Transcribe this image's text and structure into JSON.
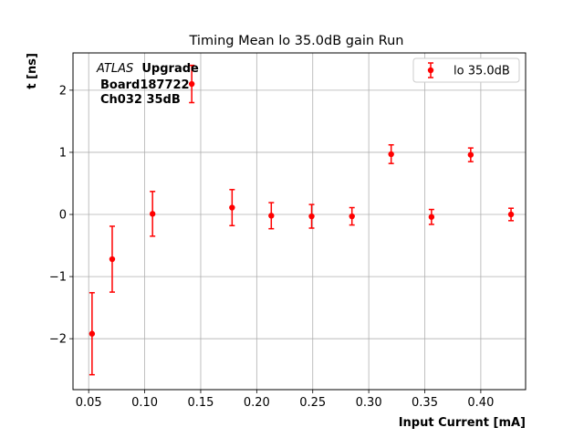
{
  "chart_data": {
    "type": "scatter",
    "title": "Timing Mean lo 35.0dB gain Run",
    "xlabel": "Input Current [mA]",
    "ylabel": "t [ns]",
    "xlim": [
      0.036,
      0.44
    ],
    "ylim": [
      -2.82,
      2.6
    ],
    "xticks": [
      0.05,
      0.1,
      0.15,
      0.2,
      0.25,
      0.3,
      0.35,
      0.4
    ],
    "xtick_labels": [
      "0.05",
      "0.10",
      "0.15",
      "0.20",
      "0.25",
      "0.30",
      "0.35",
      "0.40"
    ],
    "yticks": [
      -2,
      -1,
      0,
      1,
      2
    ],
    "ytick_labels": [
      "−2",
      "−1",
      "0",
      "1",
      "2"
    ],
    "grid": true,
    "legend_position": "top-right",
    "annotation": {
      "experiment": "ATLAS",
      "tag": "Upgrade",
      "board": "Board187722",
      "channel": "Ch032 35dB"
    },
    "series": [
      {
        "name": "lo 35.0dB",
        "color": "#ff0000",
        "marker": "circle",
        "points": [
          {
            "x": 0.053,
            "y": -1.92,
            "err": 0.66
          },
          {
            "x": 0.071,
            "y": -0.72,
            "err": 0.53
          },
          {
            "x": 0.107,
            "y": 0.01,
            "err": 0.36
          },
          {
            "x": 0.142,
            "y": 2.1,
            "err": 0.3
          },
          {
            "x": 0.178,
            "y": 0.11,
            "err": 0.29
          },
          {
            "x": 0.213,
            "y": -0.02,
            "err": 0.21
          },
          {
            "x": 0.249,
            "y": -0.03,
            "err": 0.19
          },
          {
            "x": 0.285,
            "y": -0.03,
            "err": 0.14
          },
          {
            "x": 0.32,
            "y": 0.97,
            "err": 0.15
          },
          {
            "x": 0.356,
            "y": -0.04,
            "err": 0.12
          },
          {
            "x": 0.391,
            "y": 0.96,
            "err": 0.11
          },
          {
            "x": 0.427,
            "y": 0.0,
            "err": 0.1
          }
        ]
      }
    ]
  }
}
